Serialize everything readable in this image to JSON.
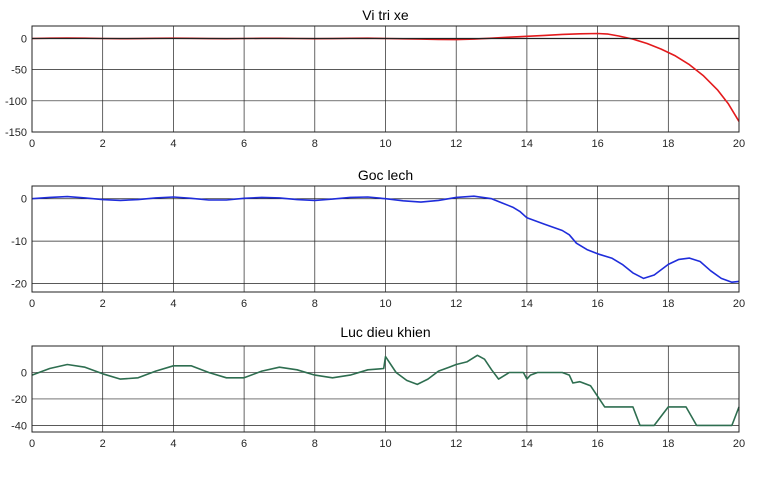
{
  "chart_data": [
    {
      "type": "line",
      "title": "Vi tri xe",
      "xlim": [
        0,
        20
      ],
      "ylim": [
        -150,
        20
      ],
      "xticks": [
        0,
        2,
        4,
        6,
        8,
        10,
        12,
        14,
        16,
        18,
        20
      ],
      "yticks": [
        0,
        -50,
        -100,
        -150
      ],
      "grid": true,
      "series": [
        {
          "color": "#e31a1c",
          "x": [
            0,
            0.5,
            1,
            1.5,
            2,
            2.5,
            3,
            3.5,
            4,
            4.5,
            5,
            5.5,
            6,
            6.5,
            7,
            7.5,
            8,
            8.5,
            9,
            9.5,
            10,
            10.5,
            11,
            11.5,
            12,
            12.5,
            13,
            13.5,
            14,
            14.5,
            15,
            15.5,
            16,
            16.3,
            16.6,
            17,
            17.4,
            17.8,
            18.2,
            18.6,
            19,
            19.4,
            19.7,
            20
          ],
          "y": [
            0,
            0.5,
            0.8,
            0.5,
            0,
            -0.3,
            -0.2,
            0.2,
            0.4,
            0.2,
            -0.2,
            -0.3,
            0,
            0.3,
            0.2,
            -0.1,
            -0.3,
            -0.2,
            0.2,
            0.5,
            0,
            -0.5,
            -1,
            -1.5,
            -1.8,
            -1,
            0.5,
            2,
            3.5,
            5,
            6.5,
            7.5,
            8,
            7,
            4,
            -1,
            -8,
            -17,
            -28,
            -42,
            -60,
            -83,
            -105,
            -133
          ]
        },
        {
          "color": "#222222",
          "x": [
            0,
            20
          ],
          "y": [
            0,
            0
          ]
        }
      ]
    },
    {
      "type": "line",
      "title": "Goc lech",
      "xlim": [
        0,
        20
      ],
      "ylim": [
        -22,
        3
      ],
      "xticks": [
        0,
        2,
        4,
        6,
        8,
        10,
        12,
        14,
        16,
        18,
        20
      ],
      "yticks": [
        0,
        -10,
        -20
      ],
      "grid": true,
      "series": [
        {
          "color": "#1f2ddb",
          "x": [
            0,
            0.5,
            1,
            1.5,
            2,
            2.5,
            3,
            3.5,
            4,
            4.5,
            5,
            5.5,
            6,
            6.5,
            7,
            7.5,
            8,
            8.5,
            9,
            9.5,
            10,
            10.5,
            11,
            11.5,
            12,
            12.5,
            13,
            13.3,
            13.6,
            13.8,
            14,
            14.5,
            15,
            15.2,
            15.4,
            15.7,
            16,
            16.4,
            16.7,
            17,
            17.3,
            17.6,
            18,
            18.3,
            18.6,
            18.9,
            19.2,
            19.5,
            19.8,
            20
          ],
          "y": [
            0,
            0.3,
            0.5,
            0.2,
            -0.2,
            -0.4,
            -0.2,
            0.2,
            0.4,
            0.1,
            -0.3,
            -0.3,
            0.1,
            0.3,
            0.2,
            -0.2,
            -0.4,
            -0.1,
            0.3,
            0.4,
            0,
            -0.5,
            -0.8,
            -0.4,
            0.3,
            0.6,
            0,
            -1,
            -2,
            -3,
            -4.5,
            -6,
            -7.5,
            -8.5,
            -10.5,
            -12,
            -13,
            -14,
            -15.5,
            -17.5,
            -18.8,
            -18,
            -15.5,
            -14.3,
            -14,
            -14.8,
            -17,
            -18.8,
            -19.7,
            -19.5
          ]
        }
      ]
    },
    {
      "type": "line",
      "title": "Luc dieu khien",
      "xlim": [
        0,
        20
      ],
      "ylim": [
        -45,
        20
      ],
      "xticks": [
        0,
        2,
        4,
        6,
        8,
        10,
        12,
        14,
        16,
        18,
        20
      ],
      "yticks": [
        0,
        -20,
        -40
      ],
      "grid": true,
      "series": [
        {
          "color": "#2e6e50",
          "x": [
            0,
            0.5,
            1,
            1.5,
            2,
            2.5,
            3,
            3.5,
            4,
            4.5,
            5,
            5.5,
            6,
            6.5,
            7,
            7.5,
            8,
            8.5,
            9,
            9.5,
            9.95,
            10,
            10.3,
            10.6,
            10.9,
            11.2,
            11.5,
            11.8,
            12,
            12.3,
            12.6,
            12.8,
            13,
            13.2,
            13.5,
            13.9,
            14,
            14.1,
            14.3,
            14.7,
            15,
            15.2,
            15.3,
            15.5,
            15.8,
            16,
            16.2,
            16.8,
            17,
            17.2,
            17.3,
            17.6,
            18,
            18.4,
            18.5,
            18.8,
            19.2,
            19.6,
            19.8,
            20
          ],
          "y": [
            -2,
            3,
            6,
            4,
            -1,
            -5,
            -4,
            1,
            5,
            5,
            0,
            -4,
            -4,
            1,
            4,
            2,
            -2,
            -4,
            -2,
            2,
            3,
            12,
            0,
            -6,
            -9,
            -5,
            1,
            4,
            6,
            8,
            13,
            10,
            2,
            -5,
            0,
            0,
            -5,
            -2,
            0,
            0,
            0,
            -2,
            -8,
            -7,
            -10,
            -18,
            -26,
            -26,
            -26,
            -40,
            -40,
            -40,
            -26,
            -26,
            -26,
            -40,
            -40,
            -40,
            -40,
            -26
          ]
        }
      ]
    }
  ]
}
